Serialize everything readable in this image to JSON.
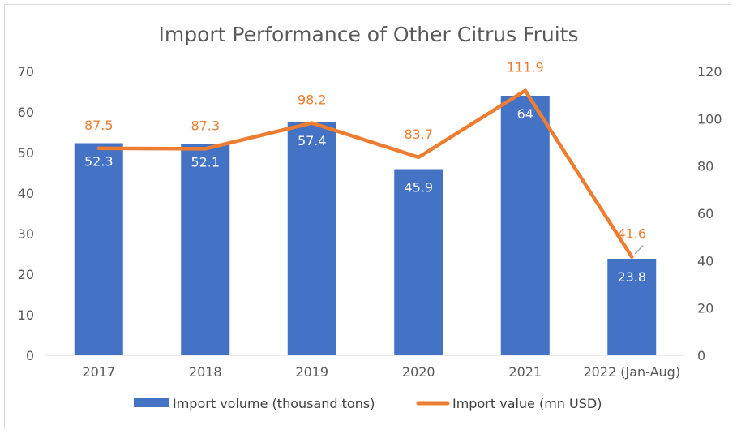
{
  "chart_data": {
    "type": "bar+line",
    "title": "Import Performance of Other Citrus Fruits",
    "categories": [
      "2017",
      "2018",
      "2019",
      "2020",
      "2021",
      "2022 (Jan-Aug)"
    ],
    "series": [
      {
        "name": "Import volume (thousand tons)",
        "type": "bar",
        "axis": "left",
        "color": "#4472c4",
        "values": [
          52.3,
          52.1,
          57.4,
          45.9,
          64,
          23.8
        ],
        "labels": [
          "52.3",
          "52.1",
          "57.4",
          "45.9",
          "64",
          "23.8"
        ]
      },
      {
        "name": "Import value (mn USD)",
        "type": "line",
        "axis": "right",
        "color": "#ed7d31",
        "values": [
          87.5,
          87.3,
          98.2,
          83.7,
          111.9,
          41.6
        ],
        "labels": [
          "87.5",
          "87.3",
          "98.2",
          "83.7",
          "111.9",
          "41.6"
        ]
      }
    ],
    "y_left": {
      "range": [
        0,
        70
      ],
      "ticks": [
        "0",
        "10",
        "20",
        "30",
        "40",
        "50",
        "60",
        "70"
      ]
    },
    "y_right": {
      "range": [
        0,
        120
      ],
      "ticks": [
        "0",
        "20",
        "40",
        "60",
        "80",
        "100",
        "120"
      ]
    },
    "grid": false,
    "legend_position": "bottom"
  }
}
